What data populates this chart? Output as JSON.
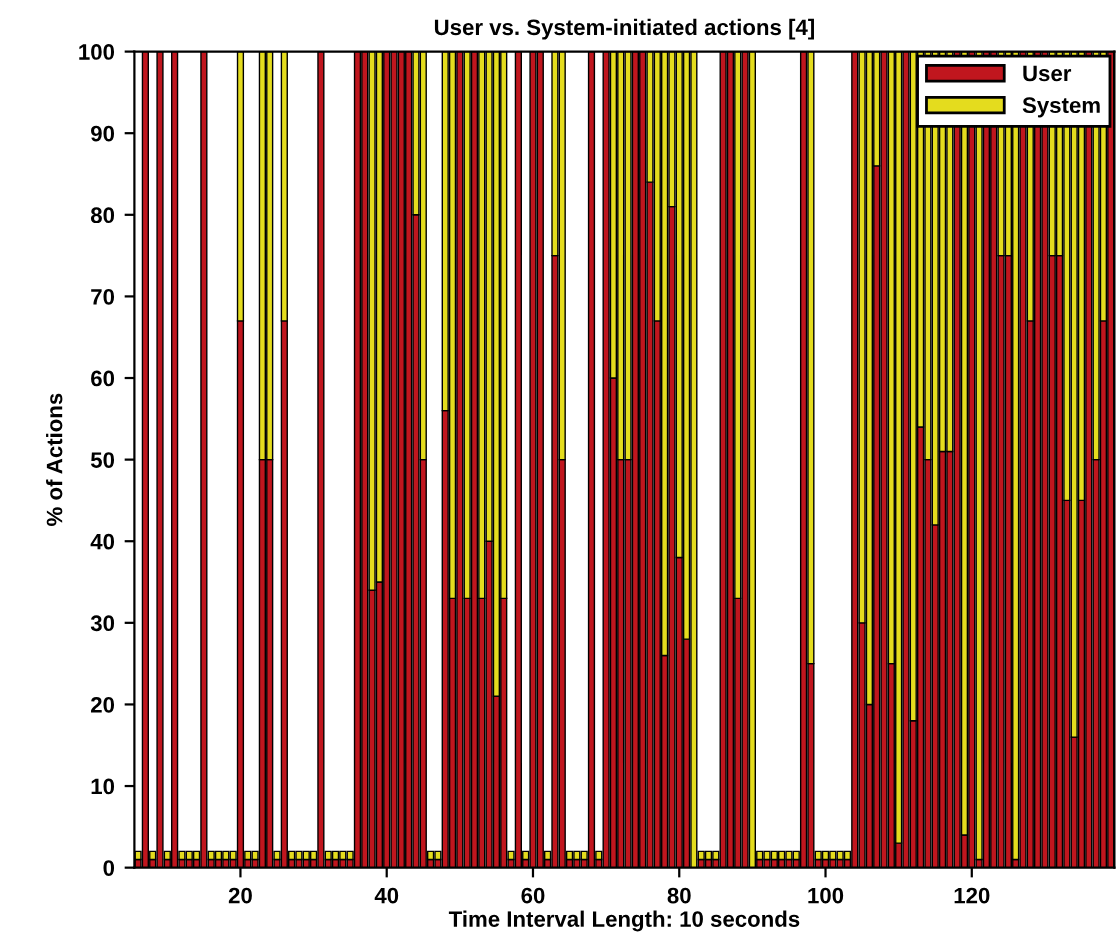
{
  "chart_data": {
    "type": "bar",
    "stacked": true,
    "title": "User vs. System-initiated actions [4]",
    "xlabel": "Time Interval Length: 10 seconds",
    "ylabel": "% of Actions",
    "x": [
      6,
      7,
      8,
      9,
      10,
      11,
      12,
      13,
      14,
      15,
      16,
      17,
      18,
      19,
      20,
      21,
      22,
      23,
      24,
      25,
      26,
      27,
      28,
      29,
      30,
      31,
      32,
      33,
      34,
      35,
      36,
      37,
      38,
      39,
      40,
      41,
      42,
      43,
      44,
      45,
      46,
      47,
      48,
      49,
      50,
      51,
      52,
      53,
      54,
      55,
      56,
      57,
      58,
      59,
      60,
      61,
      62,
      63,
      64,
      65,
      66,
      67,
      68,
      69,
      70,
      71,
      72,
      73,
      74,
      75,
      76,
      77,
      78,
      79,
      80,
      81,
      82,
      83,
      84,
      85,
      86,
      87,
      88,
      89,
      90,
      91,
      92,
      93,
      94,
      95,
      96,
      97,
      98,
      99,
      100,
      101,
      102,
      103,
      104,
      105,
      106,
      107,
      108,
      109,
      110,
      111,
      112,
      113,
      114,
      115,
      116,
      117,
      118,
      119,
      120,
      121,
      122,
      123,
      124,
      125,
      126,
      127,
      128,
      129,
      130,
      131,
      132,
      133,
      134,
      135,
      136,
      137,
      138,
      139
    ],
    "series": [
      {
        "name": "User",
        "color": "#c0161e",
        "values": [
          1,
          100,
          1,
          100,
          1,
          100,
          1,
          1,
          1,
          100,
          1,
          1,
          1,
          1,
          67,
          1,
          1,
          50,
          50,
          1,
          67,
          1,
          1,
          1,
          1,
          100,
          1,
          1,
          1,
          1,
          100,
          100,
          34,
          35,
          100,
          100,
          100,
          100,
          80,
          50,
          1,
          1,
          56,
          33,
          100,
          33,
          100,
          33,
          40,
          21,
          33,
          1,
          100,
          1,
          100,
          100,
          1,
          75,
          50,
          1,
          1,
          1,
          100,
          1,
          100,
          60,
          50,
          50,
          100,
          100,
          84,
          67,
          26,
          81,
          38,
          28,
          0,
          1,
          1,
          1,
          100,
          100,
          33,
          100,
          0,
          1,
          1,
          1,
          1,
          1,
          1,
          100,
          25,
          1,
          1,
          1,
          1,
          1,
          100,
          30,
          20,
          86,
          100,
          25,
          3,
          100,
          18,
          54,
          50,
          42,
          51,
          51,
          100,
          4,
          100,
          1,
          100,
          100,
          75,
          75,
          1,
          100,
          67,
          100,
          100,
          75,
          75,
          45,
          16,
          45,
          100,
          50,
          67,
          100
        ]
      },
      {
        "name": "System",
        "color": "#e4dc1e",
        "values": [
          1,
          0,
          1,
          0,
          1,
          0,
          1,
          1,
          1,
          0,
          1,
          1,
          1,
          1,
          33,
          1,
          1,
          50,
          50,
          1,
          33,
          1,
          1,
          1,
          1,
          0,
          1,
          1,
          1,
          1,
          0,
          0,
          66,
          65,
          0,
          0,
          0,
          0,
          20,
          50,
          1,
          1,
          44,
          67,
          0,
          67,
          0,
          67,
          60,
          79,
          67,
          1,
          0,
          1,
          0,
          0,
          1,
          25,
          50,
          1,
          1,
          1,
          0,
          1,
          0,
          40,
          50,
          50,
          0,
          0,
          16,
          33,
          74,
          19,
          62,
          72,
          100,
          1,
          1,
          1,
          0,
          0,
          67,
          0,
          100,
          1,
          1,
          1,
          1,
          1,
          1,
          0,
          75,
          1,
          1,
          1,
          1,
          1,
          0,
          70,
          80,
          14,
          0,
          75,
          97,
          0,
          82,
          46,
          50,
          58,
          49,
          49,
          0,
          96,
          0,
          99,
          0,
          0,
          25,
          25,
          99,
          0,
          33,
          0,
          0,
          25,
          25,
          55,
          84,
          55,
          0,
          50,
          33,
          0
        ]
      }
    ],
    "xlim": [
      5.5,
      139.5
    ],
    "xticks": [
      20,
      40,
      60,
      80,
      100,
      120
    ],
    "ylim": [
      0,
      100
    ],
    "yticks": [
      0,
      10,
      20,
      30,
      40,
      50,
      60,
      70,
      80,
      90,
      100
    ],
    "legend": "top right"
  }
}
